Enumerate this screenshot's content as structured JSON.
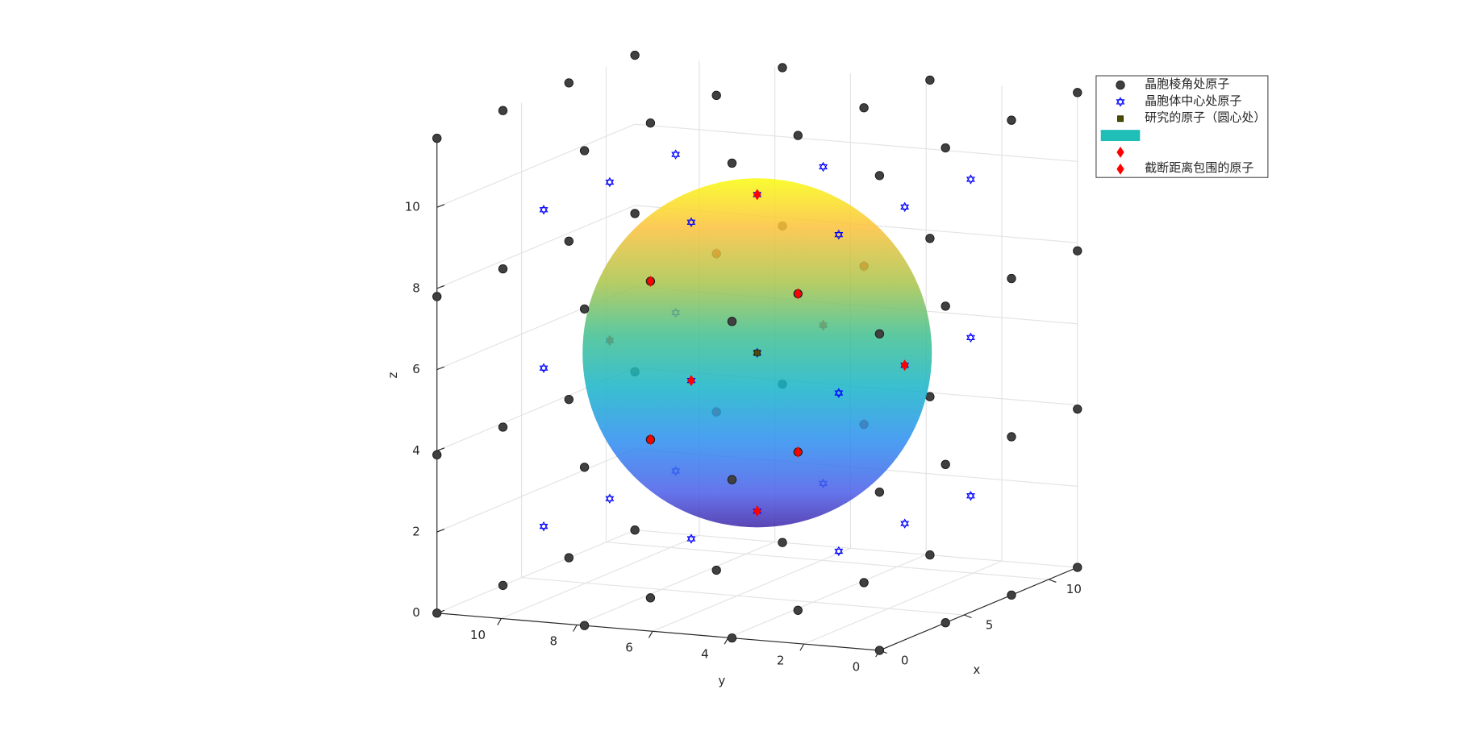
{
  "chart_data": {
    "type": "scatter3",
    "xlabel": "x",
    "ylabel": "y",
    "zlabel": "z",
    "xlim": [
      0,
      11.7
    ],
    "ylim": [
      0,
      11.7
    ],
    "zlim": [
      0,
      11.7
    ],
    "xticks": [
      0,
      5,
      10
    ],
    "yticks": [
      0,
      2,
      4,
      6,
      8,
      10
    ],
    "zticks": [
      0,
      2,
      4,
      6,
      8,
      10
    ],
    "grid": true,
    "legend": "northeast",
    "series": [
      {
        "name": "晶胞棱角处原子",
        "marker": "circle",
        "color": "#404040",
        "x": [
          0,
          0,
          0,
          0,
          0,
          0,
          0,
          0,
          0,
          0,
          0,
          0,
          0,
          0,
          0,
          0,
          3.9,
          3.9,
          3.9,
          3.9,
          3.9,
          3.9,
          3.9,
          3.9,
          3.9,
          3.9,
          3.9,
          3.9,
          3.9,
          3.9,
          3.9,
          3.9,
          7.8,
          7.8,
          7.8,
          7.8,
          7.8,
          7.8,
          7.8,
          7.8,
          7.8,
          7.8,
          7.8,
          7.8,
          7.8,
          7.8,
          7.8,
          7.8,
          11.7,
          11.7,
          11.7,
          11.7,
          11.7,
          11.7,
          11.7,
          11.7,
          11.7,
          11.7,
          11.7,
          11.7,
          11.7,
          11.7,
          11.7,
          11.7
        ],
        "y": [
          0,
          0,
          0,
          0,
          3.9,
          3.9,
          3.9,
          3.9,
          7.8,
          7.8,
          7.8,
          7.8,
          11.7,
          11.7,
          11.7,
          11.7,
          0,
          0,
          0,
          0,
          3.9,
          3.9,
          3.9,
          3.9,
          7.8,
          7.8,
          7.8,
          7.8,
          11.7,
          11.7,
          11.7,
          11.7,
          0,
          0,
          0,
          0,
          3.9,
          3.9,
          3.9,
          3.9,
          7.8,
          7.8,
          7.8,
          7.8,
          11.7,
          11.7,
          11.7,
          11.7,
          0,
          0,
          0,
          0,
          3.9,
          3.9,
          3.9,
          3.9,
          7.8,
          7.8,
          7.8,
          7.8,
          11.7,
          11.7,
          11.7,
          11.7
        ],
        "z": [
          0,
          3.9,
          7.8,
          11.7,
          0,
          3.9,
          7.8,
          11.7,
          0,
          3.9,
          7.8,
          11.7,
          0,
          3.9,
          7.8,
          11.7,
          0,
          3.9,
          7.8,
          11.7,
          0,
          3.9,
          7.8,
          11.7,
          0,
          3.9,
          7.8,
          11.7,
          0,
          3.9,
          7.8,
          11.7,
          0,
          3.9,
          7.8,
          11.7,
          0,
          3.9,
          7.8,
          11.7,
          0,
          3.9,
          7.8,
          11.7,
          0,
          3.9,
          7.8,
          11.7,
          0,
          3.9,
          7.8,
          11.7,
          0,
          3.9,
          7.8,
          11.7,
          0,
          3.9,
          7.8,
          11.7,
          0,
          3.9,
          7.8,
          11.7
        ]
      },
      {
        "name": "晶胞体中心处原子",
        "marker": "hexagram",
        "color": "#0000ff",
        "x": [
          1.95,
          1.95,
          1.95,
          1.95,
          1.95,
          1.95,
          1.95,
          1.95,
          1.95,
          5.85,
          5.85,
          5.85,
          5.85,
          5.85,
          5.85,
          5.85,
          5.85,
          5.85,
          9.75,
          9.75,
          9.75,
          9.75,
          9.75,
          9.75,
          9.75,
          9.75,
          9.75
        ],
        "y": [
          1.95,
          1.95,
          1.95,
          5.85,
          5.85,
          5.85,
          9.75,
          9.75,
          9.75,
          1.95,
          1.95,
          1.95,
          5.85,
          5.85,
          5.85,
          9.75,
          9.75,
          9.75,
          1.95,
          1.95,
          1.95,
          5.85,
          5.85,
          5.85,
          9.75,
          9.75,
          9.75
        ],
        "z": [
          1.95,
          5.85,
          9.75,
          1.95,
          5.85,
          9.75,
          1.95,
          5.85,
          9.75,
          1.95,
          5.85,
          9.75,
          1.95,
          5.85,
          9.75,
          1.95,
          5.85,
          9.75,
          1.95,
          5.85,
          9.75,
          1.95,
          5.85,
          9.75,
          1.95,
          5.85,
          9.75
        ]
      },
      {
        "name": "研究的原子（圆心处）",
        "marker": "square",
        "color": "#4d4d00",
        "x": [
          5.85
        ],
        "y": [
          5.85
        ],
        "z": [
          5.85
        ]
      },
      {
        "name": null,
        "marker": "sphere",
        "color": "#1fbfb8",
        "center": [
          5.85,
          5.85,
          5.85
        ],
        "radius": 4.3
      },
      {
        "name": null,
        "marker": "diamond",
        "color": "#ff0000"
      },
      {
        "name": "截断距离包围的原子",
        "marker": "diamond",
        "color": "#ff0000",
        "x": [
          3.9,
          3.9,
          3.9,
          3.9,
          7.8,
          7.8,
          7.8,
          7.8,
          1.95,
          9.75,
          5.85,
          5.85,
          5.85,
          5.85
        ],
        "y": [
          3.9,
          3.9,
          7.8,
          7.8,
          3.9,
          3.9,
          7.8,
          7.8,
          5.85,
          5.85,
          1.95,
          9.75,
          5.85,
          5.85
        ],
        "z": [
          3.9,
          7.8,
          3.9,
          7.8,
          3.9,
          7.8,
          3.9,
          7.8,
          5.85,
          5.85,
          5.85,
          5.85,
          1.95,
          9.75
        ]
      }
    ]
  }
}
